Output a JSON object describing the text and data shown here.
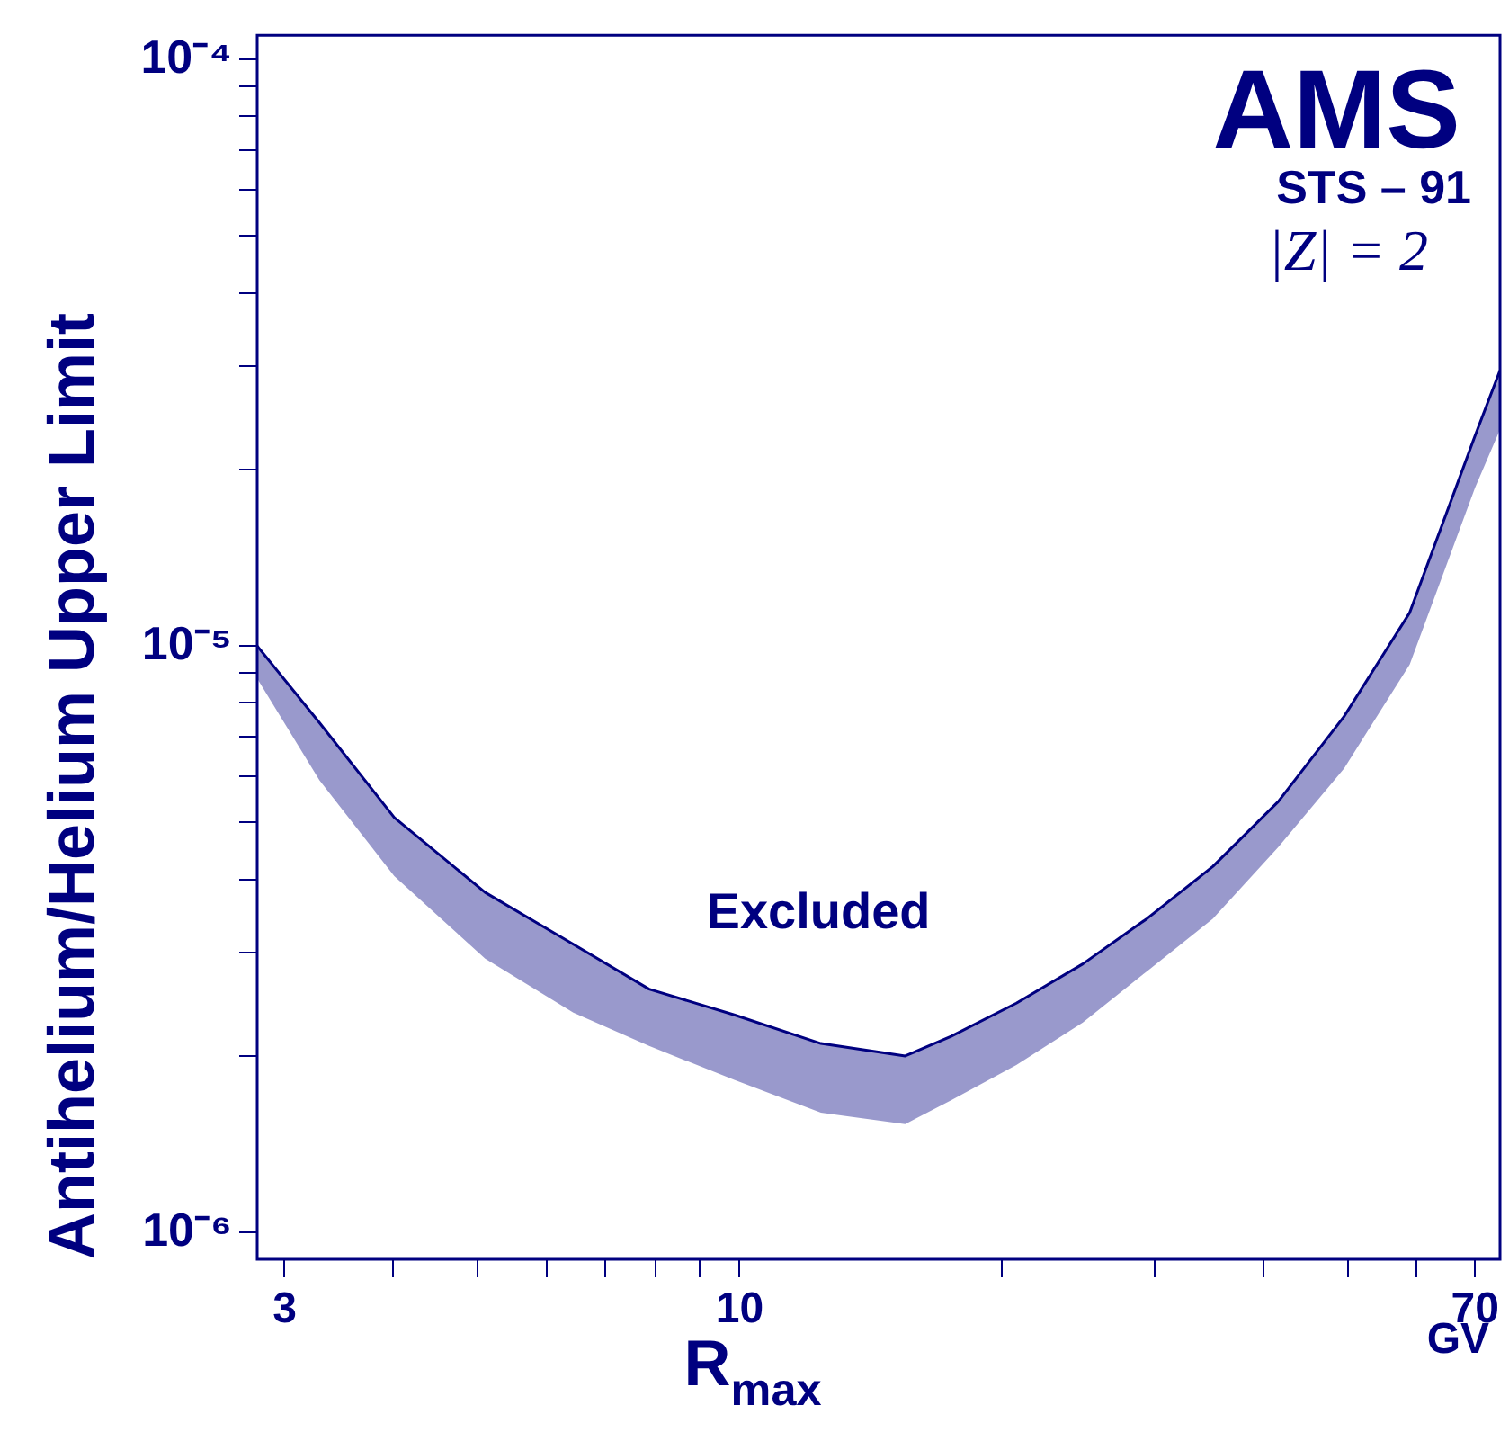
{
  "chart_data": {
    "type": "line",
    "title": "AMS",
    "subtitle": "STS – 91",
    "xlabel": "R$_{max}$",
    "ylabel": "Antihelium/Helium Upper Limit",
    "annotations": [
      "|Z| = 2",
      "Excluded",
      "GV"
    ],
    "x": [
      2.79,
      3.29,
      4.01,
      5.1,
      6.44,
      7.87,
      9.86,
      12.4,
      15.5,
      17.5,
      20.8,
      24.8,
      29.4,
      35,
      41.6,
      49.5,
      58.9,
      70,
      74.8
    ],
    "series": [
      {
        "color": "#000080",
        "values": [
          1e-05,
          7.4e-06,
          5.1e-06,
          3.8e-06,
          3.1e-06,
          2.6e-06,
          2.35e-06,
          2.1e-06,
          2e-06,
          2.16e-06,
          2.46e-06,
          2.87e-06,
          3.43e-06,
          4.21e-06,
          5.43e-06,
          7.58e-06,
          1.14e-05,
          2.28e-05,
          2.95e-05
        ],
        "upper": [
          1e-05,
          7.4e-06,
          5.1e-06,
          3.8e-06,
          3.1e-06,
          2.6e-06,
          2.35e-06,
          2.1e-06,
          2e-06,
          2.16e-06,
          2.46e-06,
          2.87e-06,
          3.43e-06,
          4.21e-06,
          5.43e-06,
          7.58e-06,
          1.14e-05,
          2.28e-05,
          2.95e-05
        ],
        "lower": [
          8.8e-06,
          5.9e-06,
          4.05e-06,
          2.93e-06,
          2.37e-06,
          2.08e-06,
          1.82e-06,
          1.6e-06,
          1.53e-06,
          1.68e-06,
          1.93e-06,
          2.28e-06,
          2.79e-06,
          3.43e-06,
          4.54e-06,
          6.18e-06,
          9.3e-06,
          1.86e-05,
          2.34e-05
        ]
      }
    ],
    "log": "xy",
    "xlim": [
      2.79,
      74.8
    ],
    "ylim": [
      9e-07,
      0.00011
    ],
    "xticks": [
      {
        "value": 3,
        "label": "3"
      },
      {
        "value": 4,
        "label": null
      },
      {
        "value": 5,
        "label": null
      },
      {
        "value": 6,
        "label": null
      },
      {
        "value": 7,
        "label": null
      },
      {
        "value": 8,
        "label": null
      },
      {
        "value": 9,
        "label": null
      },
      {
        "value": 10,
        "label": "10"
      },
      {
        "value": 20,
        "label": null
      },
      {
        "value": 30,
        "label": null
      },
      {
        "value": 40,
        "label": null
      },
      {
        "value": 50,
        "label": null
      },
      {
        "value": 60,
        "label": null
      },
      {
        "value": 70,
        "label": "70"
      }
    ],
    "yticks": [
      {
        "value": 1e-06,
        "label": "10⁻⁶"
      },
      {
        "value": 2e-06,
        "label": null
      },
      {
        "value": 3e-06,
        "label": null
      },
      {
        "value": 4e-06,
        "label": null
      },
      {
        "value": 5e-06,
        "label": null
      },
      {
        "value": 6e-06,
        "label": null
      },
      {
        "value": 7e-06,
        "label": null
      },
      {
        "value": 8e-06,
        "label": null
      },
      {
        "value": 9e-06,
        "label": null
      },
      {
        "value": 1e-05,
        "label": "10⁻⁵"
      },
      {
        "value": 2e-05,
        "label": null
      },
      {
        "value": 3e-05,
        "label": null
      },
      {
        "value": 4e-05,
        "label": null
      },
      {
        "value": 5e-05,
        "label": null
      },
      {
        "value": 6e-05,
        "label": null
      },
      {
        "value": 7e-05,
        "label": null
      },
      {
        "value": 8e-05,
        "label": null
      },
      {
        "value": 9e-05,
        "label": null
      },
      {
        "value": 0.0001,
        "label": "10⁻⁴"
      }
    ],
    "marker": "none",
    "line_style": "solid",
    "grid": false,
    "legend": false
  }
}
